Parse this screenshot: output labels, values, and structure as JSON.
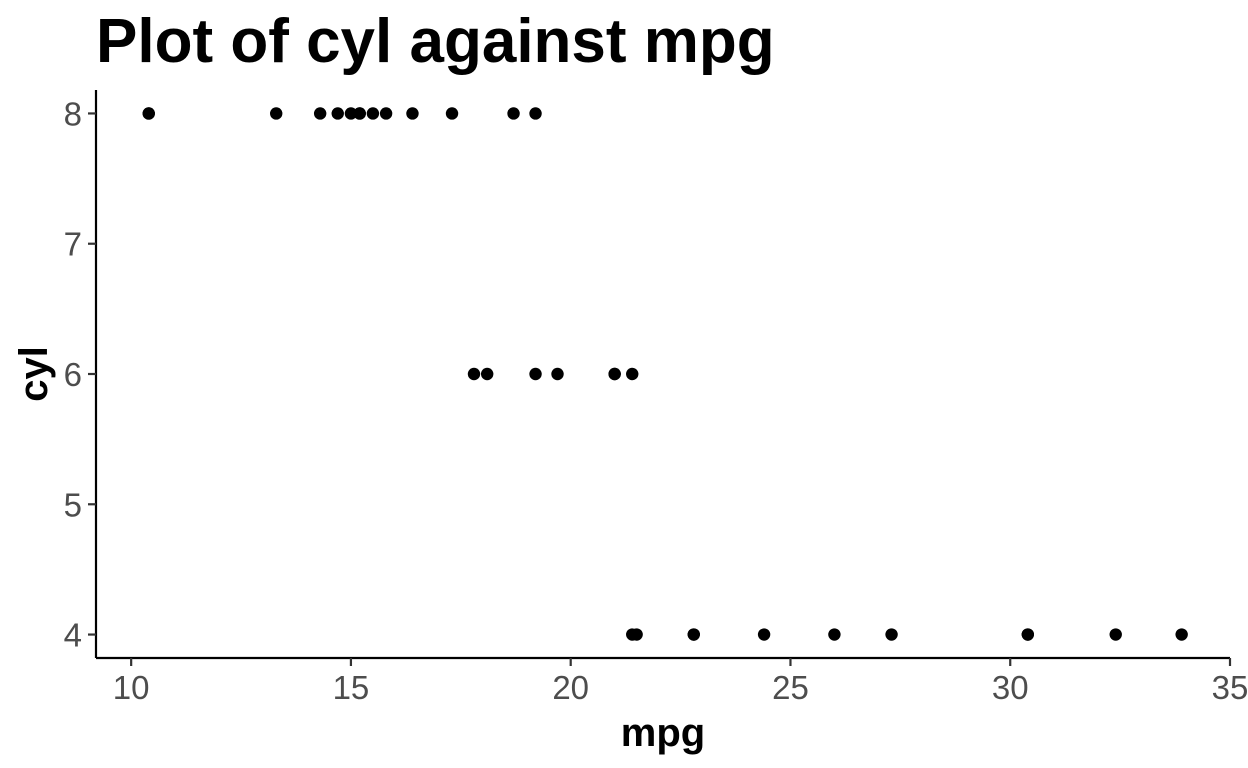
{
  "chart_data": {
    "type": "scatter",
    "title": "Plot of cyl against mpg",
    "xlabel": "mpg",
    "ylabel": "cyl",
    "xlim": [
      9.2,
      35
    ],
    "ylim": [
      3.82,
      8.18
    ],
    "x_ticks": [
      10,
      15,
      20,
      25,
      30,
      35
    ],
    "y_ticks": [
      4,
      5,
      6,
      7,
      8
    ],
    "grid": false,
    "point_color": "#000000",
    "points": [
      {
        "x": 21.0,
        "y": 6
      },
      {
        "x": 21.0,
        "y": 6
      },
      {
        "x": 22.8,
        "y": 4
      },
      {
        "x": 21.4,
        "y": 6
      },
      {
        "x": 18.7,
        "y": 8
      },
      {
        "x": 18.1,
        "y": 6
      },
      {
        "x": 14.3,
        "y": 8
      },
      {
        "x": 24.4,
        "y": 4
      },
      {
        "x": 22.8,
        "y": 4
      },
      {
        "x": 19.2,
        "y": 6
      },
      {
        "x": 17.8,
        "y": 6
      },
      {
        "x": 16.4,
        "y": 8
      },
      {
        "x": 17.3,
        "y": 8
      },
      {
        "x": 15.2,
        "y": 8
      },
      {
        "x": 10.4,
        "y": 8
      },
      {
        "x": 10.4,
        "y": 8
      },
      {
        "x": 14.7,
        "y": 8
      },
      {
        "x": 32.4,
        "y": 4
      },
      {
        "x": 30.4,
        "y": 4
      },
      {
        "x": 33.9,
        "y": 4
      },
      {
        "x": 21.5,
        "y": 4
      },
      {
        "x": 15.5,
        "y": 8
      },
      {
        "x": 15.2,
        "y": 8
      },
      {
        "x": 13.3,
        "y": 8
      },
      {
        "x": 19.2,
        "y": 8
      },
      {
        "x": 27.3,
        "y": 4
      },
      {
        "x": 26.0,
        "y": 4
      },
      {
        "x": 30.4,
        "y": 4
      },
      {
        "x": 15.8,
        "y": 8
      },
      {
        "x": 19.7,
        "y": 6
      },
      {
        "x": 15.0,
        "y": 8
      },
      {
        "x": 21.4,
        "y": 4
      }
    ]
  }
}
